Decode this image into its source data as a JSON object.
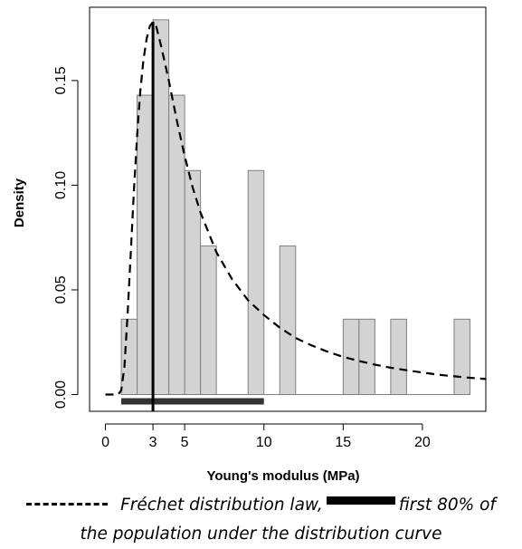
{
  "chart_data": {
    "type": "bar",
    "xlabel": "Young's modulus (MPa)",
    "ylabel": "Density",
    "xlim": [
      -1,
      24
    ],
    "ylim": [
      -0.008,
      0.185
    ],
    "x_ticks": [
      0,
      3,
      5,
      10,
      15,
      20
    ],
    "y_ticks": [
      0.0,
      0.05,
      0.1,
      0.15
    ],
    "y_tick_labels": [
      "0.00",
      "0.05",
      "0.10",
      "0.15"
    ],
    "histogram_bins": [
      {
        "x0": 1,
        "x1": 2,
        "value": 0.036
      },
      {
        "x0": 2,
        "x1": 3,
        "value": 0.143
      },
      {
        "x0": 3,
        "x1": 4,
        "value": 0.179
      },
      {
        "x0": 4,
        "x1": 5,
        "value": 0.143
      },
      {
        "x0": 5,
        "x1": 6,
        "value": 0.107
      },
      {
        "x0": 6,
        "x1": 7,
        "value": 0.071
      },
      {
        "x0": 9,
        "x1": 10,
        "value": 0.107
      },
      {
        "x0": 11,
        "x1": 12,
        "value": 0.071
      },
      {
        "x0": 15,
        "x1": 16,
        "value": 0.036
      },
      {
        "x0": 16,
        "x1": 17,
        "value": 0.036
      },
      {
        "x0": 18,
        "x1": 19,
        "value": 0.036
      },
      {
        "x0": 22,
        "x1": 23,
        "value": 0.036
      }
    ],
    "frechet_curve": {
      "style": "dashed",
      "peak_x": 3,
      "peak_y": 0.178,
      "points": [
        [
          0.0,
          0.0
        ],
        [
          0.8,
          0.0
        ],
        [
          1.0,
          0.002
        ],
        [
          1.2,
          0.013
        ],
        [
          1.4,
          0.038
        ],
        [
          1.6,
          0.068
        ],
        [
          1.8,
          0.098
        ],
        [
          2.0,
          0.124
        ],
        [
          2.2,
          0.145
        ],
        [
          2.4,
          0.16
        ],
        [
          2.6,
          0.17
        ],
        [
          2.8,
          0.176
        ],
        [
          3.0,
          0.178
        ],
        [
          3.2,
          0.176
        ],
        [
          3.5,
          0.167
        ],
        [
          4.0,
          0.15
        ],
        [
          4.5,
          0.131
        ],
        [
          5.0,
          0.114
        ],
        [
          5.5,
          0.099
        ],
        [
          6.0,
          0.087
        ],
        [
          7.0,
          0.068
        ],
        [
          8.0,
          0.055
        ],
        [
          9.0,
          0.045
        ],
        [
          10.0,
          0.038
        ],
        [
          11.0,
          0.032
        ],
        [
          12.0,
          0.027
        ],
        [
          13.0,
          0.0235
        ],
        [
          14.0,
          0.0205
        ],
        [
          15.0,
          0.018
        ],
        [
          16.0,
          0.016
        ],
        [
          17.0,
          0.0143
        ],
        [
          18.0,
          0.0128
        ],
        [
          19.0,
          0.0116
        ],
        [
          20.0,
          0.0105
        ],
        [
          21.0,
          0.0095
        ],
        [
          22.0,
          0.0087
        ],
        [
          23.0,
          0.008
        ],
        [
          24.0,
          0.0074
        ]
      ]
    },
    "mode_line_x": 3,
    "population_80pct_range": [
      1,
      10
    ],
    "legend": {
      "line1": "Fréchet distribution law,",
      "line1_after_bar": "first 80% of",
      "line2": "the population under the distribution curve"
    },
    "colors": {
      "bar_fill": "#d3d3d3",
      "bar_stroke": "#7f7f7f",
      "curve": "#000000",
      "range_bar": "#333333"
    }
  }
}
